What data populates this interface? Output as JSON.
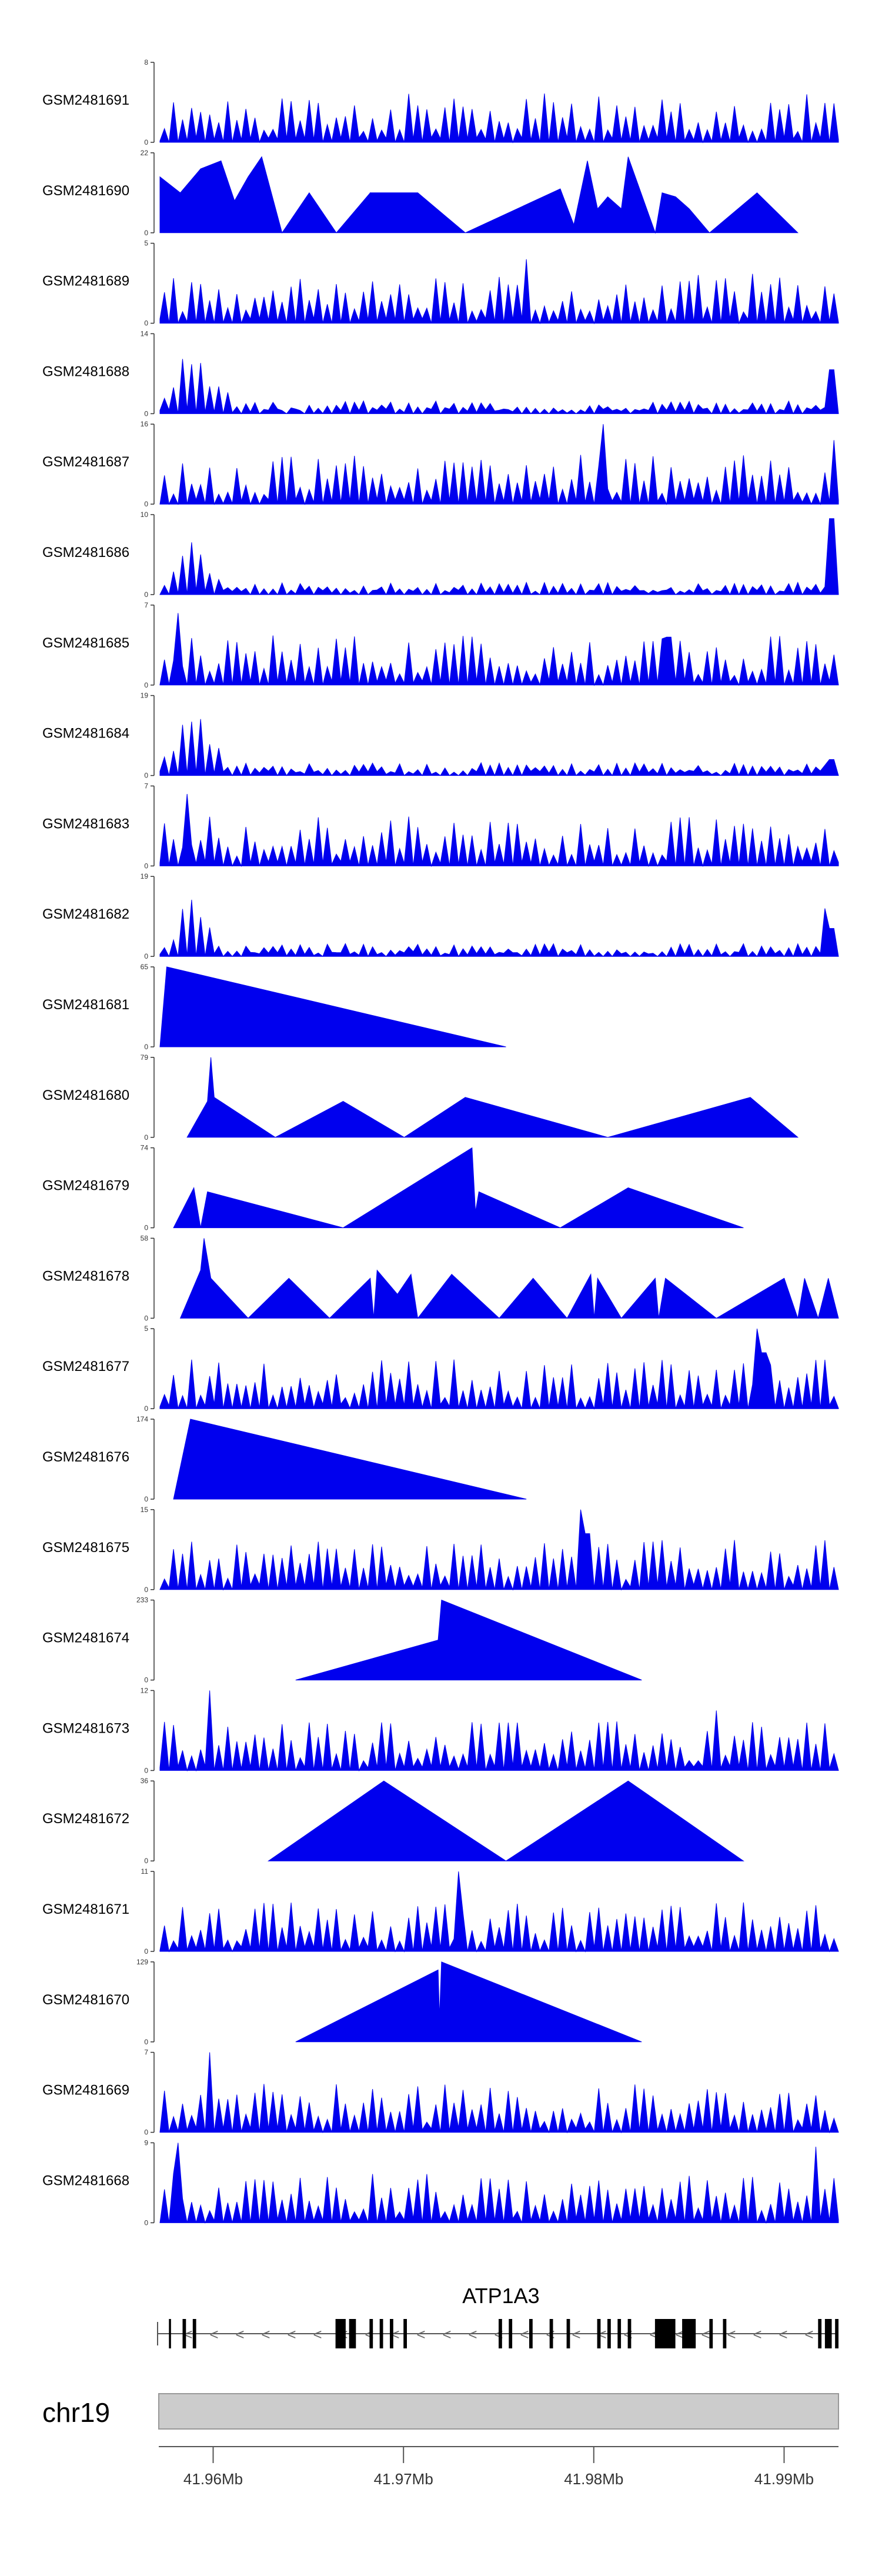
{
  "chart_data": {
    "type": "area",
    "title": "",
    "fill_color": "#0000ee",
    "axis_color": "#333333",
    "tracks": [
      {
        "sample": "GSM2481691",
        "ymax": "8",
        "ymin": "0",
        "shape": "noise",
        "seed": 11,
        "spikes": []
      },
      {
        "sample": "GSM2481690",
        "ymax": "22",
        "ymin": "0",
        "shape": "triangles",
        "seed": 12,
        "spikes": [],
        "peaks": [
          [
            0.0,
            0.7
          ],
          [
            0.03,
            0.5
          ],
          [
            0.06,
            0.8
          ],
          [
            0.09,
            0.9
          ],
          [
            0.11,
            0.4
          ],
          [
            0.13,
            0.7
          ],
          [
            0.15,
            0.95
          ],
          [
            0.18,
            0.0
          ],
          [
            0.22,
            0.5
          ],
          [
            0.26,
            0.0
          ],
          [
            0.31,
            0.5
          ],
          [
            0.35,
            0.0
          ],
          [
            0.31,
            0.5
          ],
          [
            0.38,
            0.5
          ],
          [
            0.45,
            0.0
          ],
          [
            0.59,
            0.55
          ],
          [
            0.61,
            0.1
          ],
          [
            0.63,
            0.9
          ],
          [
            0.645,
            0.3
          ],
          [
            0.66,
            0.45
          ],
          [
            0.68,
            0.3
          ],
          [
            0.69,
            0.95
          ],
          [
            0.73,
            0.0
          ],
          [
            0.74,
            0.5
          ],
          [
            0.76,
            0.45
          ],
          [
            0.78,
            0.3
          ],
          [
            0.81,
            0.0
          ],
          [
            0.88,
            0.5
          ],
          [
            0.94,
            0.0
          ]
        ]
      },
      {
        "sample": "GSM2481689",
        "ymax": "5",
        "ymin": "0",
        "shape": "noise",
        "seed": 13,
        "spikes": [
          [
            0.54,
            0.8
          ]
        ]
      },
      {
        "sample": "GSM2481688",
        "ymax": "14",
        "ymin": "0",
        "shape": "lowhump",
        "seed": 14,
        "hump": [
          0.05,
          0.07,
          0.95
        ],
        "spikes": [
          [
            0.99,
            0.55
          ]
        ]
      },
      {
        "sample": "GSM2481687",
        "ymax": "16",
        "ymin": "0",
        "shape": "noise",
        "seed": 15,
        "spikes": [
          [
            0.65,
            1.0
          ],
          [
            0.995,
            0.8
          ]
        ]
      },
      {
        "sample": "GSM2481686",
        "ymax": "10",
        "ymin": "0",
        "shape": "lowhump",
        "seed": 16,
        "hump": [
          0.05,
          0.06,
          0.7
        ],
        "spikes": [
          [
            0.985,
            0.9
          ],
          [
            0.99,
            0.95
          ]
        ]
      },
      {
        "sample": "GSM2481685",
        "ymax": "7",
        "ymin": "0",
        "shape": "noise",
        "seed": 17,
        "spikes": [
          [
            0.03,
            0.9
          ],
          [
            0.75,
            0.6
          ]
        ]
      },
      {
        "sample": "GSM2481684",
        "ymax": "19",
        "ymin": "0",
        "shape": "lowhump",
        "seed": 18,
        "hump": [
          0.05,
          0.06,
          0.9
        ],
        "spikes": [
          [
            0.99,
            0.2
          ]
        ]
      },
      {
        "sample": "GSM2481683",
        "ymax": "7",
        "ymin": "0",
        "shape": "noise",
        "seed": 19,
        "spikes": [
          [
            0.04,
            0.9
          ]
        ]
      },
      {
        "sample": "GSM2481682",
        "ymax": "19",
        "ymin": "0",
        "shape": "lowhump",
        "seed": 20,
        "hump": [
          0.05,
          0.05,
          0.95
        ],
        "spikes": [
          [
            0.98,
            0.6
          ],
          [
            0.99,
            0.35
          ]
        ]
      },
      {
        "sample": "GSM2481681",
        "ymax": "65",
        "ymin": "0",
        "shape": "triangles",
        "seed": 21,
        "spikes": [],
        "peaks": [
          [
            0.0,
            0.0
          ],
          [
            0.01,
            1.0
          ],
          [
            0.51,
            0.0
          ]
        ]
      },
      {
        "sample": "GSM2481680",
        "ymax": "79",
        "ymin": "0",
        "shape": "triangles",
        "seed": 22,
        "spikes": [],
        "peaks": [
          [
            0.04,
            0.0
          ],
          [
            0.07,
            0.45
          ],
          [
            0.075,
            1.0
          ],
          [
            0.08,
            0.5
          ],
          [
            0.17,
            0.0
          ],
          [
            0.27,
            0.45
          ],
          [
            0.36,
            0.0
          ],
          [
            0.45,
            0.5
          ],
          [
            0.66,
            0.0
          ],
          [
            0.87,
            0.5
          ],
          [
            0.94,
            0.0
          ]
        ]
      },
      {
        "sample": "GSM2481679",
        "ymax": "74",
        "ymin": "0",
        "shape": "triangles",
        "seed": 23,
        "spikes": [],
        "peaks": [
          [
            0.02,
            0.0
          ],
          [
            0.05,
            0.5
          ],
          [
            0.06,
            0.0
          ],
          [
            0.07,
            0.45
          ],
          [
            0.27,
            0.0
          ],
          [
            0.46,
            1.0
          ],
          [
            0.465,
            0.2
          ],
          [
            0.47,
            0.45
          ],
          [
            0.59,
            0.0
          ],
          [
            0.69,
            0.5
          ],
          [
            0.86,
            0.0
          ]
        ]
      },
      {
        "sample": "GSM2481678",
        "ymax": "58",
        "ymin": "0",
        "shape": "triangles",
        "seed": 24,
        "spikes": [],
        "peaks": [
          [
            0.03,
            0.0
          ],
          [
            0.06,
            0.6
          ],
          [
            0.065,
            1.0
          ],
          [
            0.075,
            0.5
          ],
          [
            0.13,
            0.0
          ],
          [
            0.19,
            0.5
          ],
          [
            0.25,
            0.0
          ],
          [
            0.31,
            0.5
          ],
          [
            0.315,
            0.0
          ],
          [
            0.32,
            0.6
          ],
          [
            0.35,
            0.3
          ],
          [
            0.37,
            0.55
          ],
          [
            0.38,
            0.0
          ],
          [
            0.43,
            0.55
          ],
          [
            0.5,
            0.0
          ],
          [
            0.55,
            0.5
          ],
          [
            0.6,
            0.0
          ],
          [
            0.635,
            0.55
          ],
          [
            0.64,
            0.0
          ],
          [
            0.645,
            0.5
          ],
          [
            0.68,
            0.0
          ],
          [
            0.73,
            0.5
          ],
          [
            0.735,
            0.0
          ],
          [
            0.745,
            0.5
          ],
          [
            0.82,
            0.0
          ],
          [
            0.92,
            0.5
          ],
          [
            0.94,
            0.0
          ],
          [
            0.95,
            0.5
          ],
          [
            0.97,
            0.0
          ],
          [
            0.985,
            0.5
          ],
          [
            1.0,
            0.0
          ]
        ]
      },
      {
        "sample": "GSM2481677",
        "ymax": "5",
        "ymin": "0",
        "shape": "noise",
        "seed": 25,
        "spikes": [
          [
            0.88,
            1.0
          ],
          [
            0.89,
            0.7
          ]
        ]
      },
      {
        "sample": "GSM2481676",
        "ymax": "174",
        "ymin": "0",
        "shape": "triangles",
        "seed": 26,
        "spikes": [],
        "peaks": [
          [
            0.02,
            0.0
          ],
          [
            0.045,
            1.0
          ],
          [
            0.54,
            0.0
          ]
        ]
      },
      {
        "sample": "GSM2481675",
        "ymax": "15",
        "ymin": "0",
        "shape": "noise",
        "seed": 27,
        "spikes": [
          [
            0.62,
            1.0
          ],
          [
            0.63,
            0.7
          ]
        ]
      },
      {
        "sample": "GSM2481674",
        "ymax": "233",
        "ymin": "0",
        "shape": "triangles",
        "seed": 28,
        "spikes": [],
        "peaks": [
          [
            0.2,
            0.0
          ],
          [
            0.41,
            0.5
          ],
          [
            0.415,
            1.0
          ],
          [
            0.71,
            0.0
          ]
        ]
      },
      {
        "sample": "GSM2481673",
        "ymax": "12",
        "ymin": "0",
        "shape": "noise",
        "seed": 29,
        "spikes": [
          [
            0.07,
            1.0
          ],
          [
            0.82,
            0.75
          ]
        ]
      },
      {
        "sample": "GSM2481672",
        "ymax": "36",
        "ymin": "0",
        "shape": "triangles",
        "seed": 30,
        "spikes": [],
        "peaks": [
          [
            0.16,
            0.0
          ],
          [
            0.33,
            1.0
          ],
          [
            0.51,
            0.0
          ],
          [
            0.69,
            1.0
          ],
          [
            0.86,
            0.0
          ]
        ]
      },
      {
        "sample": "GSM2481671",
        "ymax": "11",
        "ymin": "0",
        "shape": "noise",
        "seed": 31,
        "spikes": [
          [
            0.44,
            1.0
          ]
        ]
      },
      {
        "sample": "GSM2481670",
        "ymax": "129",
        "ymin": "0",
        "shape": "triangles",
        "seed": 32,
        "spikes": [],
        "peaks": [
          [
            0.2,
            0.0
          ],
          [
            0.41,
            0.9
          ],
          [
            0.412,
            0.3
          ],
          [
            0.415,
            1.0
          ],
          [
            0.71,
            0.0
          ]
        ]
      },
      {
        "sample": "GSM2481669",
        "ymax": "7",
        "ymin": "0",
        "shape": "noise",
        "seed": 33,
        "spikes": [
          [
            0.07,
            1.0
          ]
        ]
      },
      {
        "sample": "GSM2481668",
        "ymax": "9",
        "ymin": "0",
        "shape": "noise",
        "seed": 34,
        "spikes": [
          [
            0.03,
            1.0
          ],
          [
            0.97,
            0.95
          ]
        ]
      }
    ],
    "gene_track": {
      "gene_name": "ATP1A3",
      "exons": [
        [
          0.015,
          0.018
        ],
        [
          0.035,
          0.04
        ],
        [
          0.05,
          0.055
        ],
        [
          0.26,
          0.275
        ],
        [
          0.28,
          0.29
        ],
        [
          0.31,
          0.315
        ],
        [
          0.325,
          0.33
        ],
        [
          0.34,
          0.345
        ],
        [
          0.36,
          0.365
        ],
        [
          0.5,
          0.505
        ],
        [
          0.515,
          0.52
        ],
        [
          0.545,
          0.55
        ],
        [
          0.575,
          0.58
        ],
        [
          0.6,
          0.605
        ],
        [
          0.645,
          0.65
        ],
        [
          0.66,
          0.665
        ],
        [
          0.675,
          0.68
        ],
        [
          0.69,
          0.695
        ],
        [
          0.73,
          0.76
        ],
        [
          0.77,
          0.79
        ],
        [
          0.81,
          0.815
        ],
        [
          0.83,
          0.835
        ],
        [
          0.97,
          0.975
        ],
        [
          0.98,
          0.99
        ],
        [
          0.995,
          1.0
        ]
      ],
      "strand_arrow": "<"
    },
    "axis": {
      "chromosome": "chr19",
      "ticks": [
        "41.96Mb",
        "41.97Mb",
        "41.98Mb",
        "41.99Mb"
      ],
      "tick_positions": [
        0.08,
        0.36,
        0.64,
        0.92
      ]
    }
  }
}
